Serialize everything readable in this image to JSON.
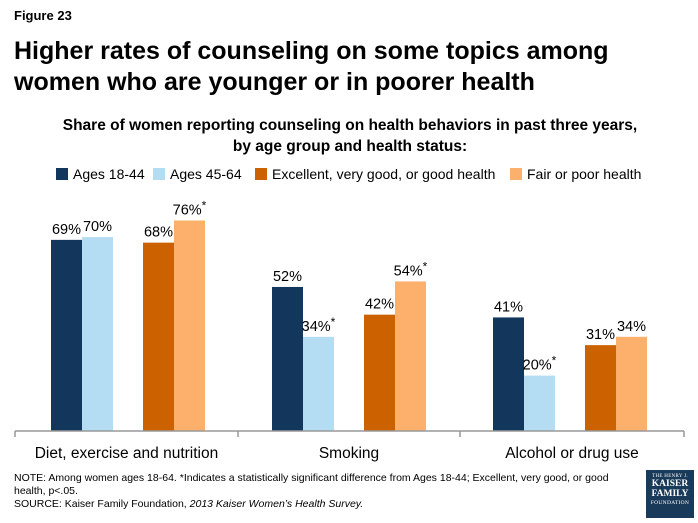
{
  "figure_label": "Figure 23",
  "title": "Higher rates of counseling on some topics among women who are younger or in poorer health",
  "note": "NOTE: Among women ages 18-64. *Indicates a statistically significant difference from Ages 18-44; Excellent, very good, or good health, p<.05.",
  "source_prefix": "SOURCE: Kaiser Family Foundation, ",
  "source_title": "2013 Kaiser Women’s Health Survey.",
  "logo": {
    "line1": "THE HENRY J.",
    "line2a": "KAISER",
    "line2b": "FAMILY",
    "line3": "FOUNDATION"
  },
  "chart_data": {
    "type": "bar",
    "title": "Share of women reporting counseling on health behaviors in past three years, by age group and health status:",
    "categories": [
      "Diet, exercise and nutrition",
      "Smoking",
      "Alcohol or drug use"
    ],
    "ylim": [
      0,
      100
    ],
    "grid": false,
    "legend_position": "top",
    "series": [
      {
        "name": "Ages 18-44",
        "color": "#13375c",
        "values": [
          69,
          52,
          41
        ],
        "labels": [
          "69%",
          "52%",
          "41%"
        ]
      },
      {
        "name": "Ages 45-64",
        "color": "#b4dcf2",
        "values": [
          70,
          34,
          20
        ],
        "labels": [
          "70%",
          "34%*",
          "20%*"
        ]
      },
      {
        "name": "Excellent, very good, or good health",
        "color": "#cc6100",
        "values": [
          68,
          42,
          31
        ],
        "labels": [
          "68%",
          "42%",
          "31%"
        ]
      },
      {
        "name": "Fair or poor health",
        "color": "#fcb06c",
        "values": [
          76,
          54,
          34
        ],
        "labels": [
          "76%*",
          "54%*",
          "34%"
        ]
      }
    ]
  }
}
